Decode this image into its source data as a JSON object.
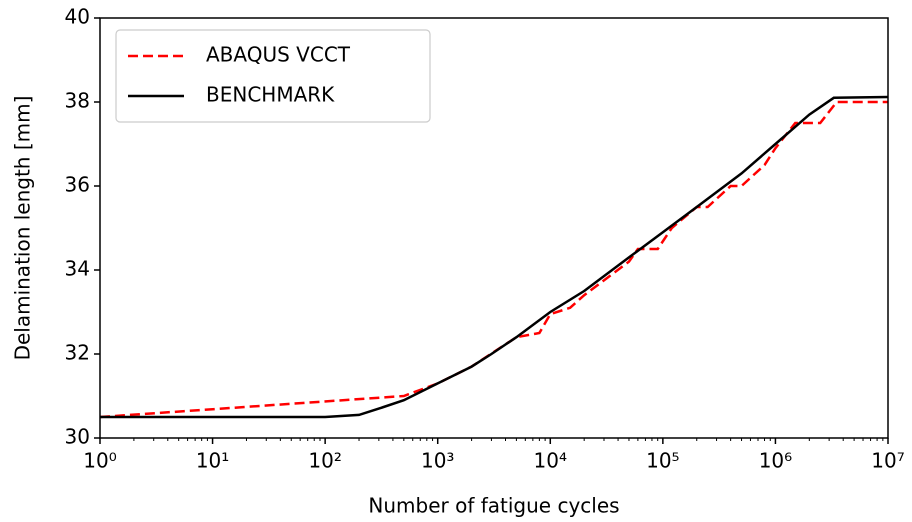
{
  "chart_data": {
    "type": "line",
    "xlabel": "Number of fatigue cycles",
    "ylabel": "Delamination length [mm]",
    "xscale": "log",
    "xlim": [
      1,
      10000000
    ],
    "ylim": [
      30,
      40
    ],
    "xticks": [
      {
        "value": 1,
        "label": "10⁰"
      },
      {
        "value": 10,
        "label": "10¹"
      },
      {
        "value": 100,
        "label": "10²"
      },
      {
        "value": 1000,
        "label": "10³"
      },
      {
        "value": 10000,
        "label": "10⁴"
      },
      {
        "value": 100000,
        "label": "10⁵"
      },
      {
        "value": 1000000,
        "label": "10⁶"
      },
      {
        "value": 10000000,
        "label": "10⁷"
      }
    ],
    "yticks": [
      30,
      32,
      34,
      36,
      38,
      40
    ],
    "legend": "upper left",
    "series": [
      {
        "name": "ABAQUS VCCT",
        "color": "#ff0000",
        "style": "dashed",
        "x": [
          1,
          500,
          1000,
          2000,
          5000,
          8000,
          10000,
          15000,
          20000,
          50000,
          60000,
          90000,
          120000,
          200000,
          250000,
          400000,
          500000,
          800000,
          1000000,
          1500000,
          2500000,
          3500000,
          10000000
        ],
        "values": [
          30.5,
          31.0,
          31.3,
          31.7,
          32.4,
          32.5,
          32.95,
          33.1,
          33.4,
          34.2,
          34.5,
          34.5,
          35.0,
          35.5,
          35.5,
          36.0,
          36.0,
          36.5,
          36.9,
          37.5,
          37.5,
          38.0,
          38.0
        ]
      },
      {
        "name": "BENCHMARK",
        "color": "#000000",
        "style": "solid",
        "x": [
          1,
          100,
          200,
          300,
          500,
          1000,
          2000,
          3000,
          5000,
          10000,
          20000,
          50000,
          100000,
          200000,
          500000,
          1000000,
          2000000,
          3300000,
          10000000
        ],
        "values": [
          30.5,
          30.5,
          30.55,
          30.7,
          30.9,
          31.3,
          31.7,
          32.0,
          32.4,
          33.0,
          33.5,
          34.3,
          34.9,
          35.5,
          36.3,
          37.0,
          37.7,
          38.1,
          38.12
        ]
      }
    ]
  }
}
